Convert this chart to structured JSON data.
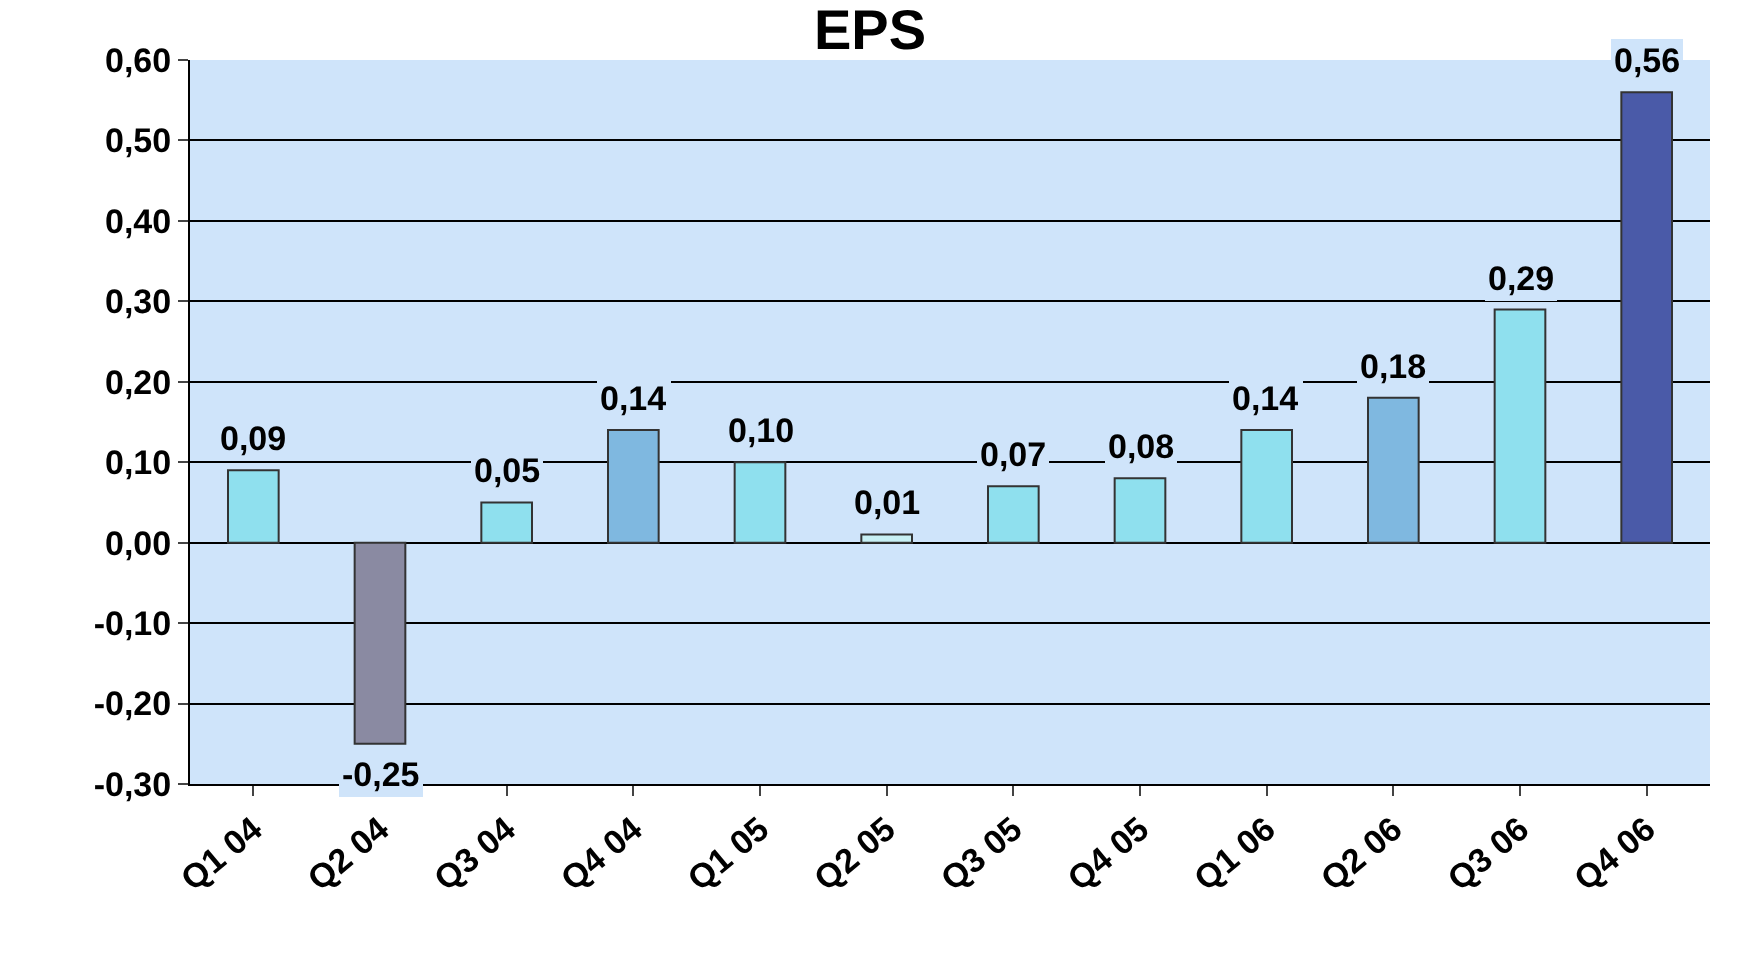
{
  "chart_data": {
    "type": "bar",
    "title": "EPS",
    "categories": [
      "Q1 04",
      "Q2 04",
      "Q3 04",
      "Q4 04",
      "Q1 05",
      "Q2 05",
      "Q3 05",
      "Q4 05",
      "Q1 06",
      "Q2 06",
      "Q3 06",
      "Q4 06"
    ],
    "values": [
      0.09,
      -0.25,
      0.05,
      0.14,
      0.1,
      0.01,
      0.07,
      0.08,
      0.14,
      0.18,
      0.29,
      0.56
    ],
    "value_labels": [
      "0,09",
      "-0,25",
      "0,05",
      "0,14",
      "0,10",
      "0,01",
      "0,07",
      "0,08",
      "0,14",
      "0,18",
      "0,29",
      "0,56"
    ],
    "colors": [
      "#8fe0ee",
      "#8a8aa2",
      "#8fe0ee",
      "#7fb8e0",
      "#8fe0ee",
      "#c8f0f4",
      "#8fe0ee",
      "#8fe0ee",
      "#8fe0ee",
      "#7fb8e0",
      "#8fe0ee",
      "#4a5aa8"
    ],
    "ylim": [
      -0.3,
      0.6
    ],
    "yticks": [
      {
        "value": -0.3,
        "label": "-0,30"
      },
      {
        "value": -0.2,
        "label": "-0,20"
      },
      {
        "value": -0.1,
        "label": "-0,10"
      },
      {
        "value": 0,
        "label": "0,00"
      },
      {
        "value": 0.1,
        "label": "0,10"
      },
      {
        "value": 0.2,
        "label": "0,20"
      },
      {
        "value": 0.3,
        "label": "0,30"
      },
      {
        "value": 0.4,
        "label": "0,40"
      },
      {
        "value": 0.5,
        "label": "0,50"
      },
      {
        "value": 0.6,
        "label": "0,60"
      }
    ],
    "grid": "y"
  }
}
